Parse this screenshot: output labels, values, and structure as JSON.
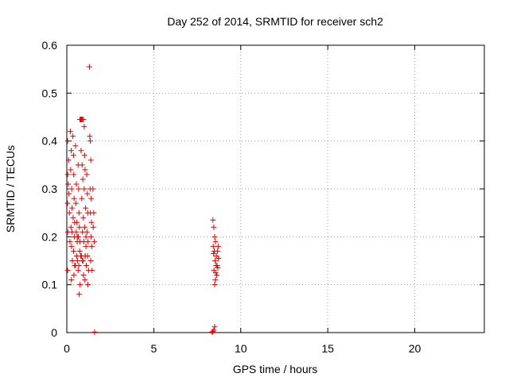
{
  "chart_data": {
    "type": "scatter",
    "title": "Day 252 of 2014, SRMTID for receiver sch2",
    "xlabel": "GPS time / hours",
    "ylabel": "SRMTID / TECUs",
    "xlim": [
      0,
      24
    ],
    "ylim": [
      0,
      0.6
    ],
    "xticks": [
      "0",
      "5",
      "10",
      "15",
      "20"
    ],
    "yticks": [
      "0",
      "0.1",
      "0.2",
      "0.3",
      "0.4",
      "0.5",
      "0.6"
    ],
    "grid": true,
    "marker": "+",
    "color": "#e00000",
    "series": [
      {
        "points": [
          [
            0.05,
            0.4
          ],
          [
            0.1,
            0.36
          ],
          [
            0.05,
            0.33
          ],
          [
            0.08,
            0.31
          ],
          [
            0.12,
            0.29
          ],
          [
            0.04,
            0.27
          ],
          [
            0.15,
            0.25
          ],
          [
            0.06,
            0.21
          ],
          [
            0.18,
            0.19
          ],
          [
            0.05,
            0.13
          ],
          [
            0.2,
            0.42
          ],
          [
            0.25,
            0.38
          ],
          [
            0.22,
            0.34
          ],
          [
            0.28,
            0.3
          ],
          [
            0.3,
            0.26
          ],
          [
            0.24,
            0.22
          ],
          [
            0.27,
            0.18
          ],
          [
            0.32,
            0.15
          ],
          [
            0.26,
            0.11
          ],
          [
            0.35,
            0.41
          ],
          [
            0.38,
            0.37
          ],
          [
            0.4,
            0.33
          ],
          [
            0.42,
            0.28
          ],
          [
            0.36,
            0.24
          ],
          [
            0.44,
            0.2
          ],
          [
            0.39,
            0.17
          ],
          [
            0.45,
            0.14
          ],
          [
            0.41,
            0.12
          ],
          [
            0.5,
            0.39
          ],
          [
            0.55,
            0.31
          ],
          [
            0.52,
            0.27
          ],
          [
            0.58,
            0.23
          ],
          [
            0.54,
            0.21
          ],
          [
            0.6,
            0.19
          ],
          [
            0.57,
            0.16
          ],
          [
            0.62,
            0.15
          ],
          [
            0.65,
            0.35
          ],
          [
            0.68,
            0.3
          ],
          [
            0.7,
            0.25
          ],
          [
            0.72,
            0.22
          ],
          [
            0.66,
            0.2
          ],
          [
            0.74,
            0.17
          ],
          [
            0.69,
            0.14
          ],
          [
            0.76,
            0.1
          ],
          [
            0.71,
            0.08
          ],
          [
            0.75,
            0.445
          ],
          [
            0.8,
            0.445
          ],
          [
            0.85,
            0.445
          ],
          [
            0.9,
            0.445
          ],
          [
            0.95,
            0.445
          ],
          [
            0.82,
            0.38
          ],
          [
            0.88,
            0.35
          ],
          [
            0.92,
            0.32
          ],
          [
            0.86,
            0.28
          ],
          [
            0.95,
            0.24
          ],
          [
            0.9,
            0.21
          ],
          [
            0.98,
            0.19
          ],
          [
            0.84,
            0.16
          ],
          [
            0.93,
            0.15
          ],
          [
            0.96,
            0.12
          ],
          [
            1.0,
            0.43
          ],
          [
            1.02,
            0.37
          ],
          [
            1.05,
            0.34
          ],
          [
            1.0,
            0.3
          ],
          [
            1.08,
            0.26
          ],
          [
            1.03,
            0.22
          ],
          [
            1.1,
            0.2
          ],
          [
            1.06,
            0.16
          ],
          [
            1.12,
            0.14
          ],
          [
            1.04,
            0.11
          ],
          [
            1.15,
            0.33
          ],
          [
            1.18,
            0.29
          ],
          [
            1.2,
            0.25
          ],
          [
            1.16,
            0.21
          ],
          [
            1.22,
            0.19
          ],
          [
            1.19,
            0.16
          ],
          [
            1.25,
            0.13
          ],
          [
            1.21,
            0.1
          ],
          [
            1.3,
            0.555
          ],
          [
            1.32,
            0.41
          ],
          [
            1.35,
            0.4
          ],
          [
            1.38,
            0.36
          ],
          [
            1.34,
            0.3
          ],
          [
            1.4,
            0.28
          ],
          [
            1.36,
            0.25
          ],
          [
            1.42,
            0.23
          ],
          [
            1.39,
            0.2
          ],
          [
            1.44,
            0.18
          ],
          [
            1.37,
            0.15
          ],
          [
            1.45,
            0.13
          ],
          [
            1.5,
            0.3
          ],
          [
            1.55,
            0.25
          ],
          [
            1.52,
            0.22
          ],
          [
            1.58,
            0.19
          ],
          [
            1.6,
            0.001
          ],
          [
            0.3,
            0.21
          ],
          [
            0.45,
            0.23
          ],
          [
            0.6,
            0.2
          ],
          [
            0.75,
            0.19
          ],
          [
            0.9,
            0.15
          ],
          [
            1.05,
            0.16
          ],
          [
            0.5,
            0.14
          ],
          [
            0.65,
            0.13
          ],
          [
            0.8,
            0.16
          ],
          [
            1.1,
            0.18
          ],
          [
            8.35,
            0.001
          ],
          [
            8.4,
            0.002
          ],
          [
            8.45,
            0.005
          ],
          [
            8.5,
            0.012
          ],
          [
            8.4,
            0.235
          ],
          [
            8.45,
            0.22
          ],
          [
            8.5,
            0.2
          ],
          [
            8.55,
            0.19
          ],
          [
            8.42,
            0.18
          ],
          [
            8.48,
            0.17
          ],
          [
            8.6,
            0.16
          ],
          [
            8.52,
            0.15
          ],
          [
            8.58,
            0.14
          ],
          [
            8.46,
            0.13
          ],
          [
            8.62,
            0.12
          ],
          [
            8.54,
            0.11
          ],
          [
            8.66,
            0.17
          ],
          [
            8.7,
            0.18
          ],
          [
            8.64,
            0.14
          ],
          [
            8.56,
            0.125
          ],
          [
            8.68,
            0.135
          ],
          [
            8.5,
            0.1
          ],
          [
            8.44,
            0.165
          ],
          [
            8.72,
            0.155
          ]
        ]
      }
    ]
  }
}
